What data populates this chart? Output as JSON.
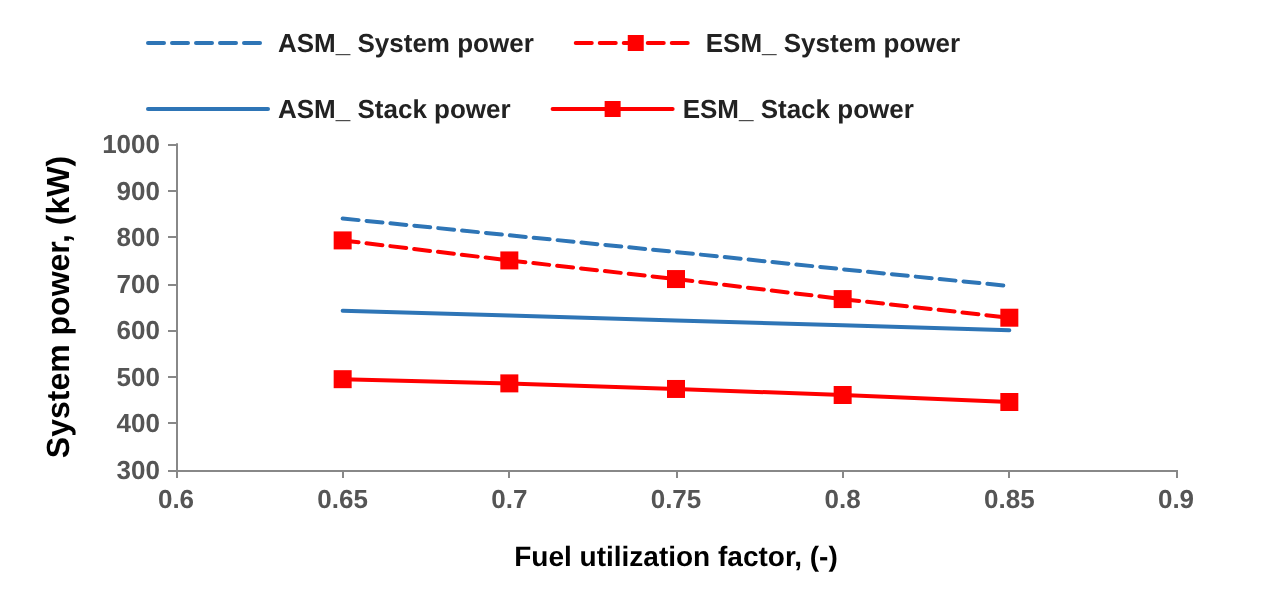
{
  "chart_data": {
    "type": "line",
    "xlabel": "Fuel utilization factor, (-)",
    "ylabel": "System power, (kW)",
    "x": [
      0.65,
      0.7,
      0.75,
      0.8,
      0.85
    ],
    "xlim": [
      0.6,
      0.9
    ],
    "xticks": [
      0.6,
      0.65,
      0.7,
      0.75,
      0.8,
      0.85,
      0.9
    ],
    "ylim": [
      300,
      1000
    ],
    "yticks": [
      300,
      400,
      500,
      600,
      700,
      800,
      900,
      1000
    ],
    "grid": false,
    "legend": "top",
    "series": [
      {
        "name": "ASM_ System power",
        "color": "#2e75b6",
        "values": [
          840,
          804,
          768,
          731,
          695
        ],
        "line_style": "dashed",
        "marker": "none"
      },
      {
        "name": "ESM_ System power",
        "color": "#ff0000",
        "values": [
          793,
          750,
          710,
          667,
          627
        ],
        "line_style": "dashed",
        "marker": "square"
      },
      {
        "name": "ASM_ Stack power",
        "color": "#2e75b6",
        "values": [
          642,
          632,
          621,
          611,
          600
        ],
        "line_style": "solid",
        "marker": "none"
      },
      {
        "name": "ESM_ Stack power",
        "color": "#ff0000",
        "values": [
          495,
          486,
          474,
          461,
          446
        ],
        "line_style": "solid",
        "marker": "square"
      }
    ]
  }
}
